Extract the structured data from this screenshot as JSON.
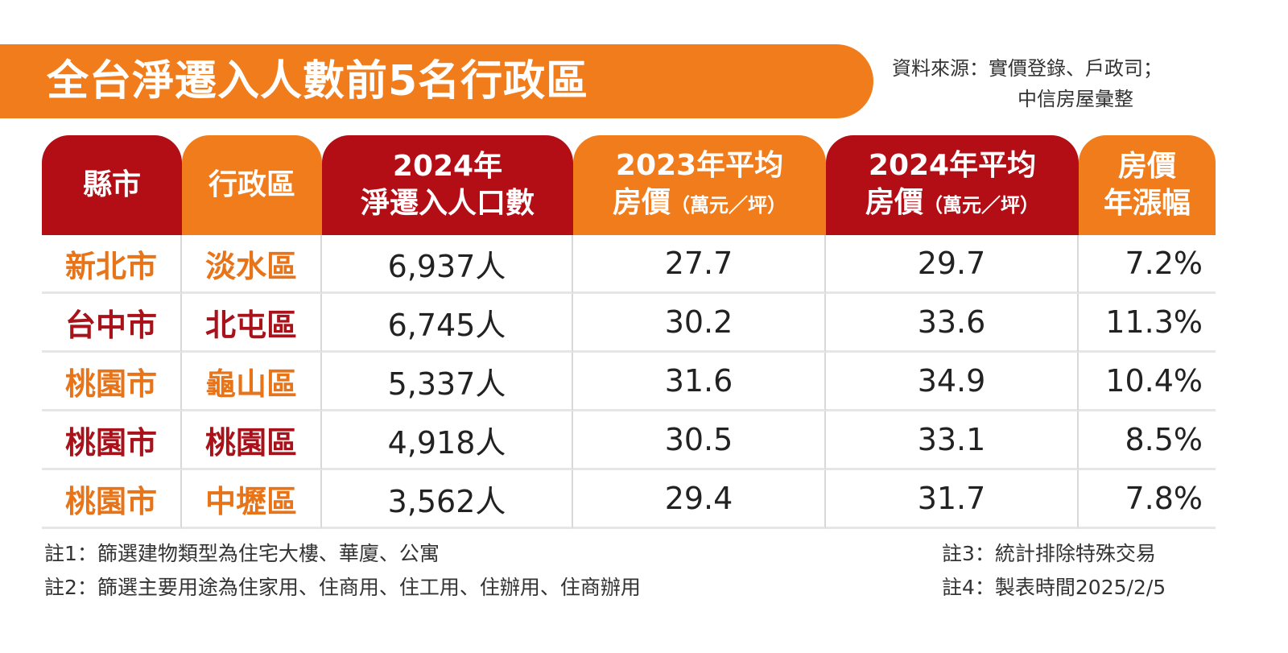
{
  "title": "全台淨遷入人數前5名行政區",
  "source": {
    "line1": "資料來源：實價登錄、戶政司；",
    "line2": "中信房屋彙整"
  },
  "headers": {
    "city": "縣市",
    "district": "行政區",
    "pop_line1": "2024年",
    "pop_line2": "淨遷入人口數",
    "p2023_line1": "2023年平均",
    "p2023_line2": "房價",
    "p2023_unit": "（萬元／坪）",
    "p2024_line1": "2024年平均",
    "p2024_line2": "房價",
    "p2024_unit": "（萬元／坪）",
    "growth_line1": "房價",
    "growth_line2": "年漲幅"
  },
  "rows": [
    {
      "city": "新北市",
      "district": "淡水區",
      "population": "6,937人",
      "price_2023": "27.7",
      "price_2024": "29.7",
      "growth": "7.2%"
    },
    {
      "city": "台中市",
      "district": "北屯區",
      "population": "6,745人",
      "price_2023": "30.2",
      "price_2024": "33.6",
      "growth": "11.3%"
    },
    {
      "city": "桃園市",
      "district": "龜山區",
      "population": "5,337人",
      "price_2023": "31.6",
      "price_2024": "34.9",
      "growth": "10.4%"
    },
    {
      "city": "桃園市",
      "district": "桃園區",
      "population": "4,918人",
      "price_2023": "30.5",
      "price_2024": "33.1",
      "growth": "8.5%"
    },
    {
      "city": "桃園市",
      "district": "中壢區",
      "population": "3,562人",
      "price_2023": "29.4",
      "price_2024": "31.7",
      "growth": "7.8%"
    }
  ],
  "notes": {
    "note1": "註1：篩選建物類型為住宅大樓、華廈、公寓",
    "note2": "註2：篩選主要用途為住家用、住商用、住工用、住辦用、住商辦用",
    "note3": "註3：統計排除特殊交易",
    "note4": "註4：製表時間2025/2/5"
  },
  "colors": {
    "orange": "#f07c1c",
    "red": "#b30d16"
  }
}
